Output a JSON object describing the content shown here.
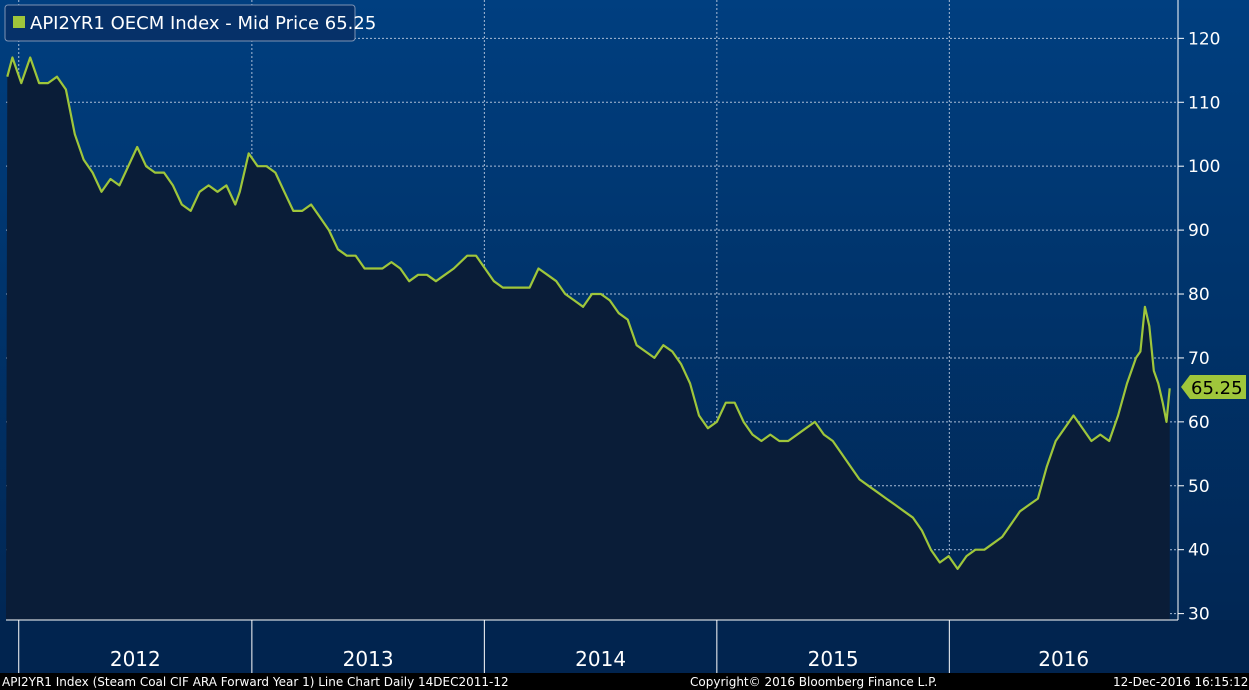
{
  "legend": {
    "label": "API2YR1 OECM Index - Mid Price 65.25"
  },
  "last_value_badge": "65.25",
  "footer": {
    "left": "API2YR1 Index (Steam Coal CIF ARA Forward Year 1) Line Chart  Daily 14DEC2011-12",
    "center": "Copyright© 2016 Bloomberg Finance L.P.",
    "right": "12-Dec-2016 16:15:12"
  },
  "colors": {
    "plot_top": "#003f80",
    "plot_bottom": "#01244f",
    "area_fill": "#0a1d38",
    "line": "#9fc63b",
    "grid": "#a9bcd6",
    "footer_bg": "#000000"
  },
  "chart_data": {
    "type": "line",
    "title": "",
    "xlabel": "",
    "ylabel": "",
    "x_years": [
      "2012",
      "2013",
      "2014",
      "2015",
      "2016"
    ],
    "ylim": [
      29,
      126
    ],
    "yticks": [
      30,
      40,
      50,
      60,
      70,
      80,
      90,
      100,
      110,
      120
    ],
    "grid": true,
    "y_axis_side": "right",
    "legend_position": "top-left",
    "series": [
      {
        "name": "API2YR1 OECM Index - Mid Price",
        "area": true,
        "points": [
          [
            "2011-12-14",
            114
          ],
          [
            "2011-12-22",
            117
          ],
          [
            "2012-01-05",
            113
          ],
          [
            "2012-01-19",
            117
          ],
          [
            "2012-02-02",
            113
          ],
          [
            "2012-02-16",
            113
          ],
          [
            "2012-03-01",
            114
          ],
          [
            "2012-03-15",
            112
          ],
          [
            "2012-03-29",
            105
          ],
          [
            "2012-04-12",
            101
          ],
          [
            "2012-04-26",
            99
          ],
          [
            "2012-05-10",
            96
          ],
          [
            "2012-05-24",
            98
          ],
          [
            "2012-06-07",
            97
          ],
          [
            "2012-06-21",
            100
          ],
          [
            "2012-07-05",
            103
          ],
          [
            "2012-07-19",
            100
          ],
          [
            "2012-08-02",
            99
          ],
          [
            "2012-08-16",
            99
          ],
          [
            "2012-08-30",
            97
          ],
          [
            "2012-09-13",
            94
          ],
          [
            "2012-09-27",
            93
          ],
          [
            "2012-10-11",
            96
          ],
          [
            "2012-10-25",
            97
          ],
          [
            "2012-11-08",
            96
          ],
          [
            "2012-11-22",
            97
          ],
          [
            "2012-12-06",
            94
          ],
          [
            "2012-12-13",
            96
          ],
          [
            "2012-12-27",
            102
          ],
          [
            "2013-01-10",
            100
          ],
          [
            "2013-01-24",
            100
          ],
          [
            "2013-02-07",
            99
          ],
          [
            "2013-02-21",
            96
          ],
          [
            "2013-03-07",
            93
          ],
          [
            "2013-03-21",
            93
          ],
          [
            "2013-04-04",
            94
          ],
          [
            "2013-04-18",
            92
          ],
          [
            "2013-05-02",
            90
          ],
          [
            "2013-05-16",
            87
          ],
          [
            "2013-05-30",
            86
          ],
          [
            "2013-06-13",
            86
          ],
          [
            "2013-06-27",
            84
          ],
          [
            "2013-07-11",
            84
          ],
          [
            "2013-07-25",
            84
          ],
          [
            "2013-08-08",
            85
          ],
          [
            "2013-08-22",
            84
          ],
          [
            "2013-09-05",
            82
          ],
          [
            "2013-09-19",
            83
          ],
          [
            "2013-10-03",
            83
          ],
          [
            "2013-10-17",
            82
          ],
          [
            "2013-10-31",
            83
          ],
          [
            "2013-11-14",
            84
          ],
          [
            "2013-12-05",
            86
          ],
          [
            "2013-12-19",
            86
          ],
          [
            "2014-01-02",
            84
          ],
          [
            "2014-01-16",
            82
          ],
          [
            "2014-01-30",
            81
          ],
          [
            "2014-02-13",
            81
          ],
          [
            "2014-02-27",
            81
          ],
          [
            "2014-03-13",
            81
          ],
          [
            "2014-03-27",
            84
          ],
          [
            "2014-04-10",
            83
          ],
          [
            "2014-04-24",
            82
          ],
          [
            "2014-05-08",
            80
          ],
          [
            "2014-05-22",
            79
          ],
          [
            "2014-06-05",
            78
          ],
          [
            "2014-06-19",
            80
          ],
          [
            "2014-07-03",
            80
          ],
          [
            "2014-07-17",
            79
          ],
          [
            "2014-07-31",
            77
          ],
          [
            "2014-08-14",
            76
          ],
          [
            "2014-08-28",
            72
          ],
          [
            "2014-09-11",
            71
          ],
          [
            "2014-09-25",
            70
          ],
          [
            "2014-10-09",
            72
          ],
          [
            "2014-10-23",
            71
          ],
          [
            "2014-11-06",
            69
          ],
          [
            "2014-11-20",
            66
          ],
          [
            "2014-12-04",
            61
          ],
          [
            "2014-12-18",
            59
          ],
          [
            "2015-01-01",
            60
          ],
          [
            "2015-01-15",
            63
          ],
          [
            "2015-01-29",
            63
          ],
          [
            "2015-02-12",
            60
          ],
          [
            "2015-02-26",
            58
          ],
          [
            "2015-03-12",
            57
          ],
          [
            "2015-03-26",
            58
          ],
          [
            "2015-04-09",
            57
          ],
          [
            "2015-04-23",
            57
          ],
          [
            "2015-05-07",
            58
          ],
          [
            "2015-05-21",
            59
          ],
          [
            "2015-06-04",
            60
          ],
          [
            "2015-06-18",
            58
          ],
          [
            "2015-07-02",
            57
          ],
          [
            "2015-07-16",
            55
          ],
          [
            "2015-07-30",
            53
          ],
          [
            "2015-08-13",
            51
          ],
          [
            "2015-08-27",
            50
          ],
          [
            "2015-09-10",
            49
          ],
          [
            "2015-09-24",
            48
          ],
          [
            "2015-10-08",
            47
          ],
          [
            "2015-10-22",
            46
          ],
          [
            "2015-11-05",
            45
          ],
          [
            "2015-11-19",
            43
          ],
          [
            "2015-12-03",
            40
          ],
          [
            "2015-12-17",
            38
          ],
          [
            "2015-12-31",
            39
          ],
          [
            "2016-01-14",
            37
          ],
          [
            "2016-01-28",
            39
          ],
          [
            "2016-02-11",
            40
          ],
          [
            "2016-02-25",
            40
          ],
          [
            "2016-03-10",
            41
          ],
          [
            "2016-03-24",
            42
          ],
          [
            "2016-04-07",
            44
          ],
          [
            "2016-04-21",
            46
          ],
          [
            "2016-05-05",
            47
          ],
          [
            "2016-05-19",
            48
          ],
          [
            "2016-06-02",
            53
          ],
          [
            "2016-06-16",
            57
          ],
          [
            "2016-06-30",
            59
          ],
          [
            "2016-07-14",
            61
          ],
          [
            "2016-07-28",
            59
          ],
          [
            "2016-08-11",
            57
          ],
          [
            "2016-08-25",
            58
          ],
          [
            "2016-09-08",
            57
          ],
          [
            "2016-09-22",
            61
          ],
          [
            "2016-10-06",
            66
          ],
          [
            "2016-10-20",
            70
          ],
          [
            "2016-10-27",
            71
          ],
          [
            "2016-11-03",
            78
          ],
          [
            "2016-11-10",
            75
          ],
          [
            "2016-11-17",
            68
          ],
          [
            "2016-11-24",
            66
          ],
          [
            "2016-12-01",
            63
          ],
          [
            "2016-12-07",
            60
          ],
          [
            "2016-12-12",
            65.25
          ]
        ]
      }
    ]
  }
}
